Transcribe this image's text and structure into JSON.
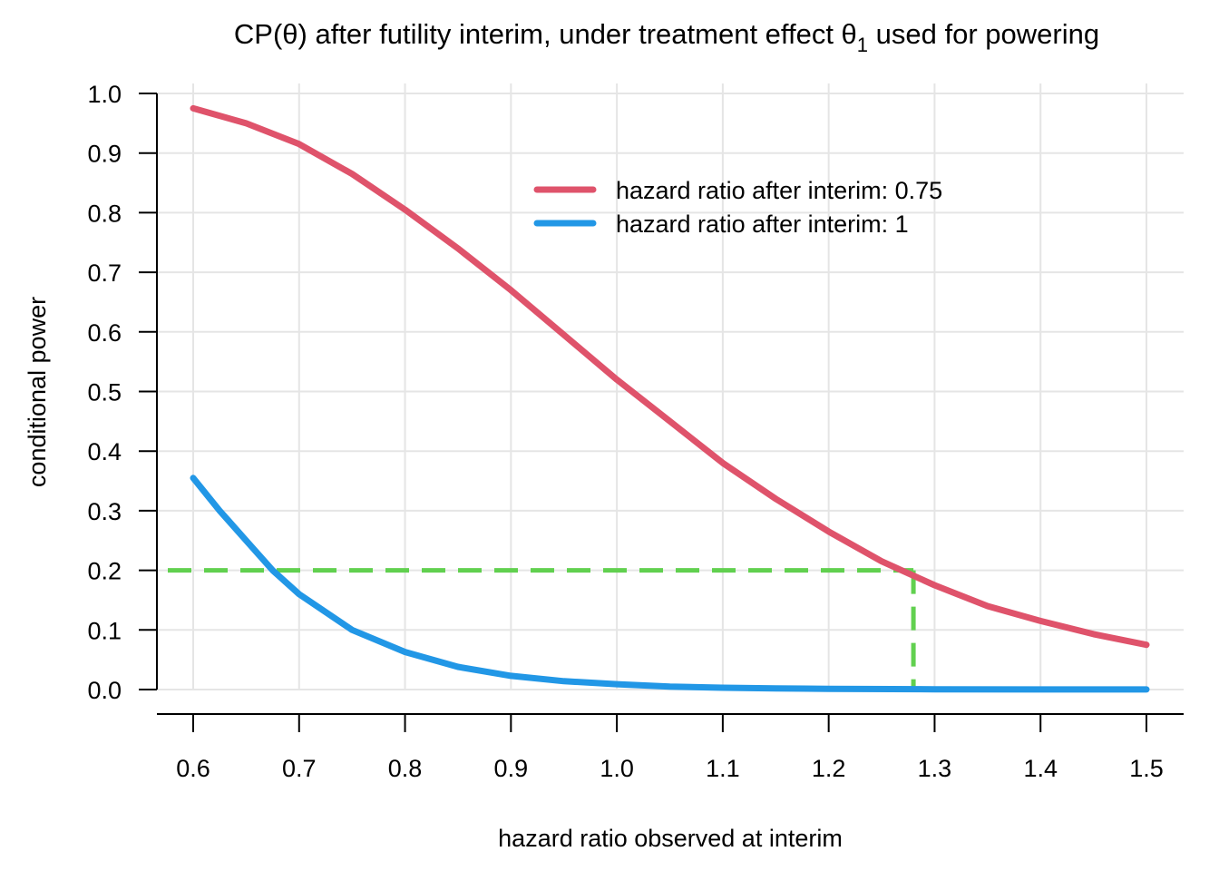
{
  "chart_data": {
    "type": "line",
    "title_prefix": "CP(θ) after futility interim, under treatment effect θ",
    "title_subscript": "1",
    "title_suffix": " used for powering",
    "xlabel": "hazard ratio observed at interim",
    "ylabel": "conditional power",
    "xlim": [
      0.6,
      1.5
    ],
    "ylim": [
      0,
      1
    ],
    "x_ticks": [
      "0.6",
      "0.7",
      "0.8",
      "0.9",
      "1.0",
      "1.1",
      "1.2",
      "1.3",
      "1.4",
      "1.5"
    ],
    "y_ticks": [
      "0.0",
      "0.1",
      "0.2",
      "0.3",
      "0.4",
      "0.5",
      "0.6",
      "0.7",
      "0.8",
      "0.9",
      "1.0"
    ],
    "grid": true,
    "legend_position": "top-right",
    "series": [
      {
        "name": "hazard ratio after interim: 0.75",
        "color": "#DF536B",
        "x": [
          0.6,
          0.65,
          0.7,
          0.75,
          0.8,
          0.85,
          0.9,
          0.95,
          1.0,
          1.05,
          1.1,
          1.15,
          1.2,
          1.25,
          1.3,
          1.35,
          1.4,
          1.45,
          1.5
        ],
        "y": [
          0.975,
          0.95,
          0.915,
          0.865,
          0.805,
          0.74,
          0.67,
          0.595,
          0.52,
          0.45,
          0.38,
          0.32,
          0.265,
          0.215,
          0.175,
          0.14,
          0.115,
          0.093,
          0.075
        ]
      },
      {
        "name": "hazard ratio after interim: 1",
        "color": "#2297E6",
        "x": [
          0.6,
          0.625,
          0.65,
          0.675,
          0.7,
          0.75,
          0.8,
          0.85,
          0.9,
          0.95,
          1.0,
          1.05,
          1.1,
          1.15,
          1.2,
          1.3,
          1.4,
          1.5
        ],
        "y": [
          0.355,
          0.3,
          0.25,
          0.2,
          0.16,
          0.1,
          0.063,
          0.038,
          0.023,
          0.014,
          0.009,
          0.005,
          0.003,
          0.002,
          0.001,
          0.0005,
          0.0002,
          0.0001
        ]
      }
    ],
    "reference_lines": {
      "color": "#61D04F",
      "h_y": 0.2,
      "v_x": 1.28
    }
  }
}
